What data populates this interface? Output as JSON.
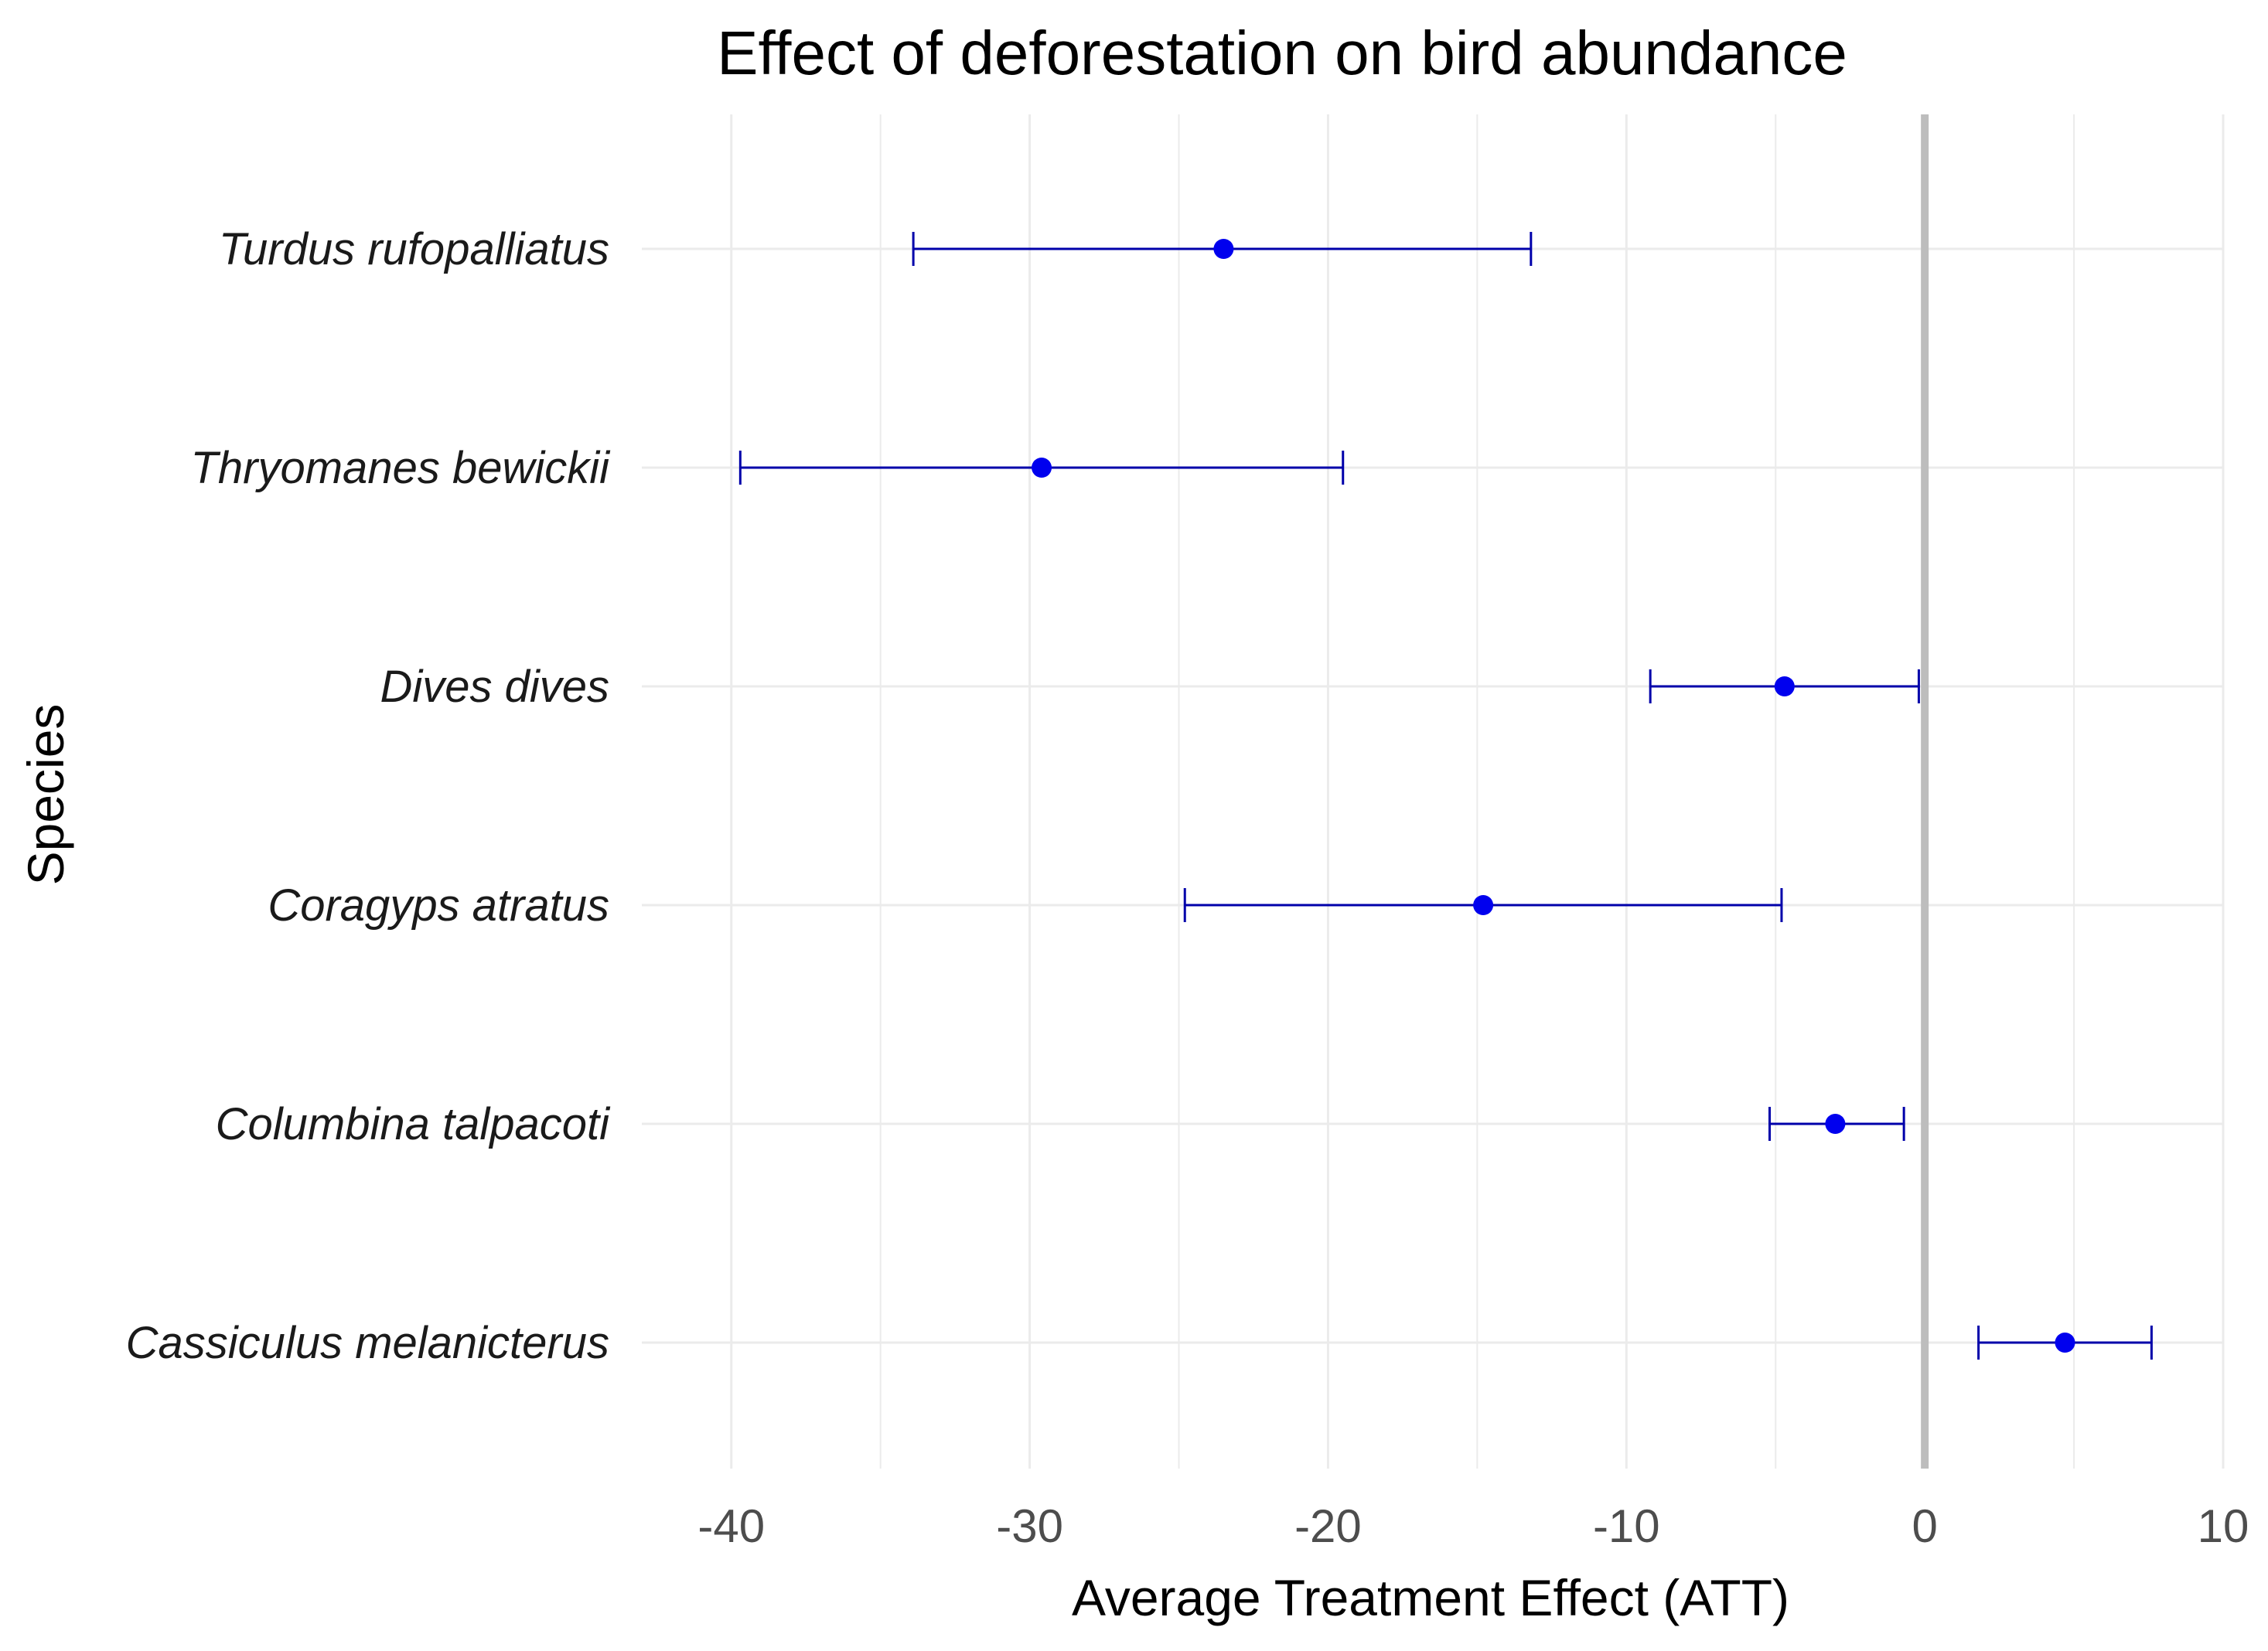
{
  "chart_data": {
    "type": "errorbar",
    "title": "Effect of deforestation on bird abundance",
    "xlabel": "Average Treatment Effect (ATT)",
    "ylabel": "Species",
    "xlim": [
      -43,
      10
    ],
    "xticks": [
      -40,
      -30,
      -20,
      -10,
      0,
      10
    ],
    "xtick_labels": [
      "-40",
      "-30",
      "-20",
      "-10",
      "0",
      "10"
    ],
    "reference_line": 0,
    "grid": true,
    "point_color": "#0000ee",
    "bar_color": "#0000aa",
    "ref_line_color": "#bdbdbd",
    "grid_color": "#ebebeb",
    "series": [
      {
        "species": "Turdus rufopalliatus",
        "estimate": -23.5,
        "lower": -33.9,
        "upper": -13.2
      },
      {
        "species": "Thryomanes bewickii",
        "estimate": -29.6,
        "lower": -39.7,
        "upper": -19.5
      },
      {
        "species": "Dives dives",
        "estimate": -4.7,
        "lower": -9.2,
        "upper": -0.2
      },
      {
        "species": "Coragyps atratus",
        "estimate": -14.8,
        "lower": -24.8,
        "upper": -4.8
      },
      {
        "species": "Columbina talpacoti",
        "estimate": -3.0,
        "lower": -5.2,
        "upper": -0.7
      },
      {
        "species": "Cassiculus melanicterus",
        "estimate": 4.7,
        "lower": 1.8,
        "upper": 7.6
      }
    ]
  }
}
